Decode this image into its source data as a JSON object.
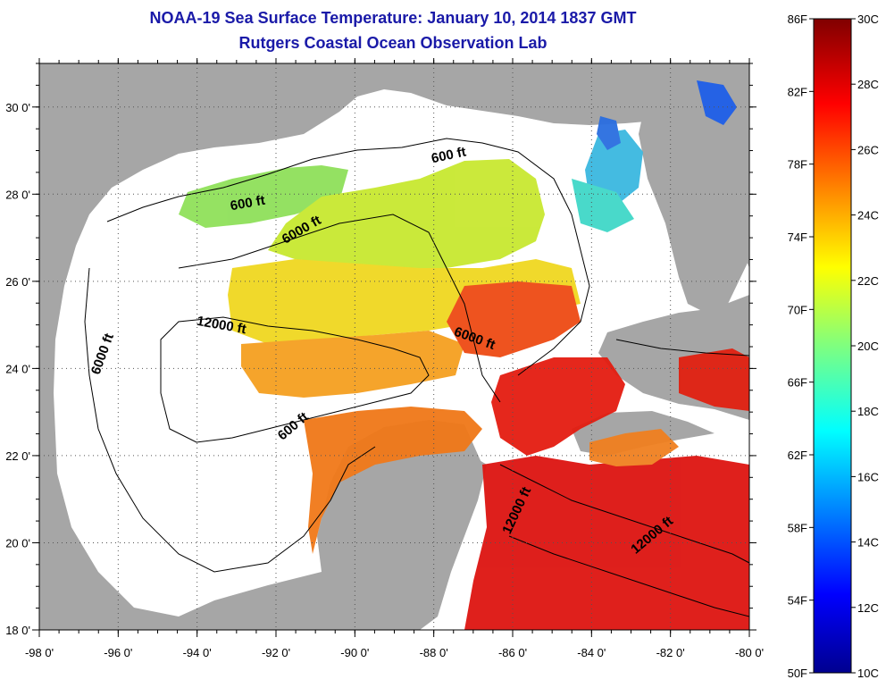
{
  "header": {
    "title": "NOAA-19 Sea Surface Temperature:  January 10, 2014 1837 GMT",
    "subtitle": "Rutgers Coastal Ocean Observation Lab"
  },
  "map": {
    "lon_min": -98,
    "lon_max": -80,
    "lat_min": 18,
    "lat_max": 31,
    "lon_ticks": [
      "-98 0'",
      "-96 0'",
      "-94 0'",
      "-92 0'",
      "-90 0'",
      "-88 0'",
      "-86 0'",
      "-84 0'",
      "-82 0'",
      "-80 0'"
    ],
    "lat_ticks": [
      "18 0'",
      "20 0'",
      "22 0'",
      "24 0'",
      "26 0'",
      "28 0'",
      "30 0'"
    ],
    "contour_labels": [
      {
        "text": "600 ft",
        "lon": -92.7,
        "lat": 27.7
      },
      {
        "text": "600 ft",
        "lon": -87.6,
        "lat": 28.8
      },
      {
        "text": "6000 ft",
        "lon": -91.3,
        "lat": 27.1
      },
      {
        "text": "6000 ft",
        "lon": -96.3,
        "lat": 24.3
      },
      {
        "text": "6000 ft",
        "lon": -87.0,
        "lat": 24.6
      },
      {
        "text": "12000 ft",
        "lon": -93.4,
        "lat": 24.9
      },
      {
        "text": "600 ft",
        "lon": -91.5,
        "lat": 22.6
      },
      {
        "text": "12000 ft",
        "lon": -85.8,
        "lat": 20.7
      },
      {
        "text": "12000 ft",
        "lon": -82.4,
        "lat": 20.1
      }
    ],
    "colors": {
      "land": "#a6a6a6",
      "ocean": "#ffffff",
      "grid": "#555555",
      "contour": "#000000"
    }
  },
  "colorbar": {
    "fahrenheit": [
      "86F",
      "82F",
      "78F",
      "74F",
      "70F",
      "66F",
      "62F",
      "58F",
      "54F",
      "50F"
    ],
    "celsius": [
      "30C",
      "28C",
      "26C",
      "24C",
      "22C",
      "20C",
      "18C",
      "16C",
      "14C",
      "12C",
      "10C"
    ]
  }
}
